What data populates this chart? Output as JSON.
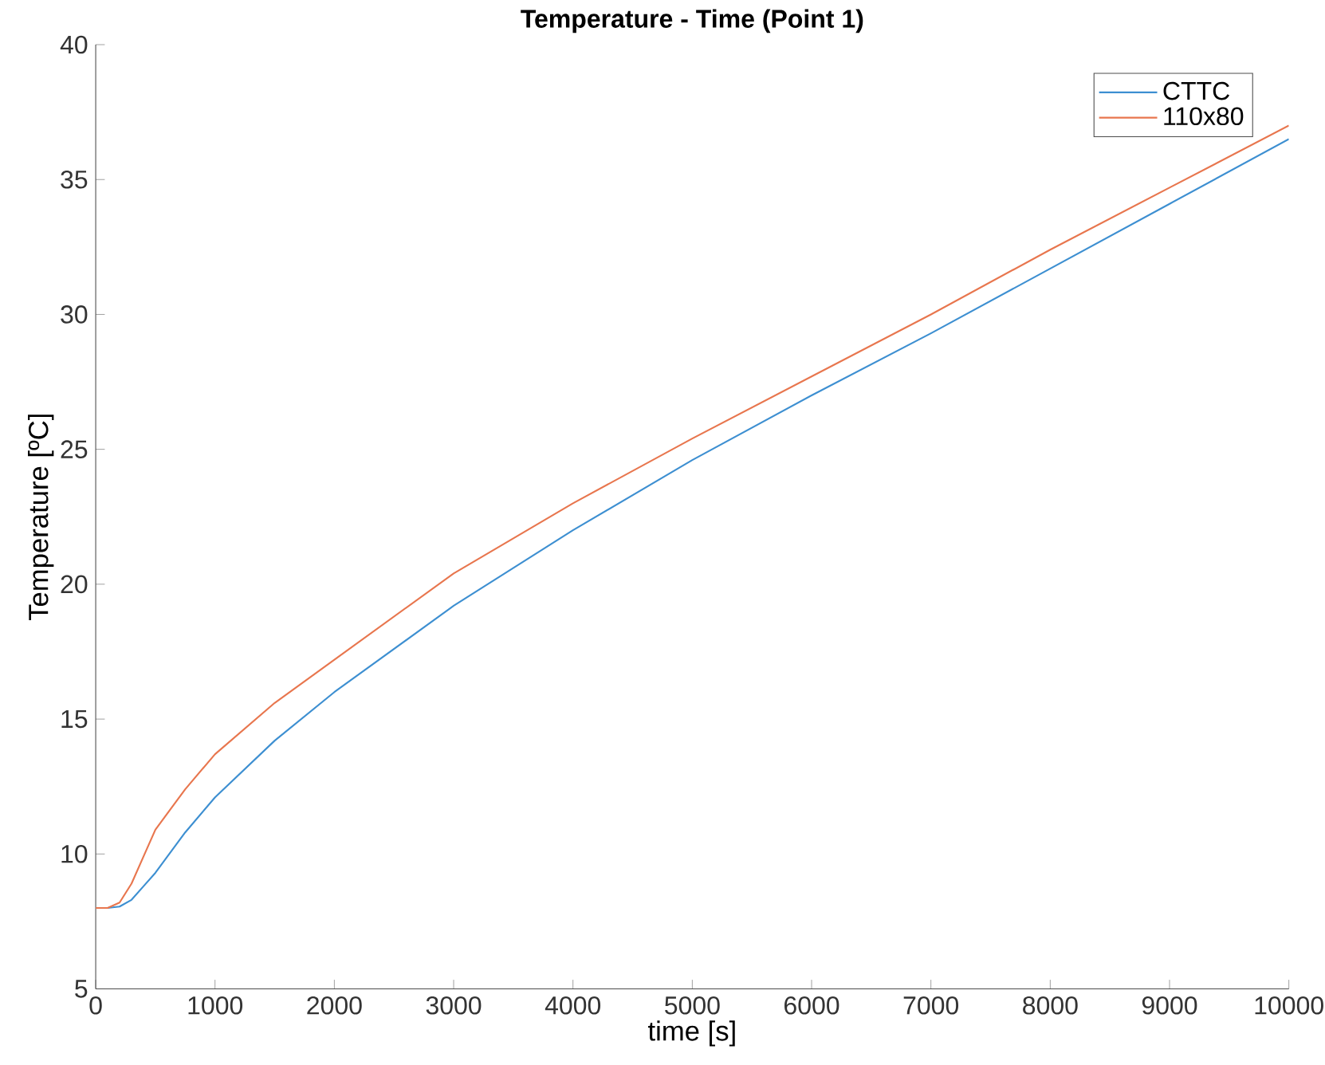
{
  "chart_data": {
    "type": "line",
    "title": "Temperature - Time (Point 1)",
    "xlabel": "time [s]",
    "ylabel": "Temperature [ºC]",
    "xlim": [
      0,
      10000
    ],
    "ylim": [
      5,
      40
    ],
    "xticks": [
      0,
      1000,
      2000,
      3000,
      4000,
      5000,
      6000,
      7000,
      8000,
      9000,
      10000
    ],
    "yticks": [
      5,
      10,
      15,
      20,
      25,
      30,
      35,
      40
    ],
    "grid": false,
    "legend": "top right",
    "marker": "none",
    "line_style": "solid",
    "series": [
      {
        "name": "CTTC",
        "color": "#3d8fd1",
        "x": [
          0,
          100,
          200,
          300,
          400,
          500,
          750,
          1000,
          1500,
          2000,
          3000,
          4000,
          5000,
          6000,
          7000,
          8000,
          9000,
          10000
        ],
        "values": [
          8.0,
          8.0,
          8.05,
          8.3,
          8.8,
          9.3,
          10.8,
          12.1,
          14.2,
          16.0,
          19.2,
          22.0,
          24.6,
          27.0,
          29.3,
          31.7,
          34.1,
          36.5
        ]
      },
      {
        "name": "110x80",
        "color": "#e8764e",
        "x": [
          0,
          100,
          200,
          300,
          400,
          500,
          750,
          1000,
          1500,
          2000,
          3000,
          4000,
          5000,
          6000,
          7000,
          8000,
          9000,
          10000
        ],
        "values": [
          8.0,
          8.0,
          8.2,
          8.9,
          9.9,
          10.9,
          12.4,
          13.7,
          15.6,
          17.2,
          20.4,
          23.0,
          25.4,
          27.7,
          30.0,
          32.4,
          34.7,
          37.0
        ]
      }
    ]
  }
}
